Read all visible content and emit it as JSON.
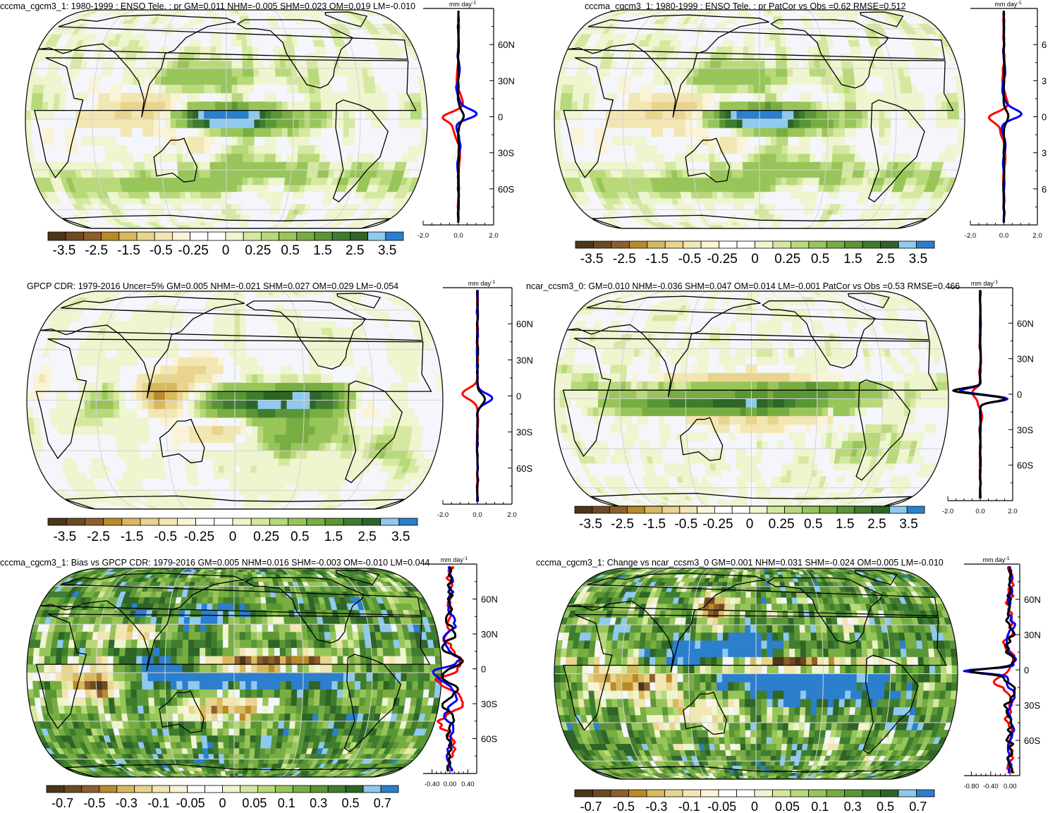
{
  "colors": {
    "scale": [
      "#4c3618",
      "#6e4a22",
      "#8c5f2c",
      "#b88a2a",
      "#d8b95f",
      "#e8d48e",
      "#f2e6b2",
      "#faf3d6",
      "#ffffff",
      "#ffffff",
      "#eef5cf",
      "#d5e8a0",
      "#b8d97a",
      "#98c55a",
      "#78ad42",
      "#5a9636",
      "#3f7d2e",
      "#2e6526",
      "#8fc9ee",
      "#2b7fcc"
    ],
    "ocean": "#f5f6fb",
    "land": "#ffffff",
    "grid": "#d4d4d4",
    "coast": "#000000",
    "obs_line": "#ff0000",
    "model_line": "#0000ff",
    "diff_line": "#000000"
  },
  "chart_data": [
    {
      "type": "heatmap",
      "title": "cccma_cgcm3_1: 1980-1999 : ENSO Tele. : pr GM=0.011 NHM=-0.005 SHM=0.023 OM=0.019 LM=-0.010",
      "field": "model",
      "colorbar": {
        "labels": [
          "-3.5",
          "-2.5",
          "-1.5",
          "-0.5",
          "-0.25",
          "0",
          "0.25",
          "0.5",
          "1.5",
          "2.5",
          "3.5"
        ]
      },
      "zonal": {
        "unit": "mm day",
        "unit_exp": "-1",
        "xticks": [
          "-2.0",
          "0.0",
          "2.0"
        ],
        "xlim": [
          -2,
          2
        ],
        "lat_ticks": [
          "60N",
          "30N",
          "0",
          "30S",
          "60S"
        ],
        "ylim": [
          -90,
          90
        ]
      }
    },
    {
      "type": "heatmap",
      "title": "cccma_cgcm3_1: 1980-1999 : ENSO Tele. : pr PatCor vs Obs =0.62 RMSE=0.512",
      "field": "model",
      "colorbar": {
        "labels": [
          "-3.5",
          "-2.5",
          "-1.5",
          "-0.5",
          "-0.25",
          "0",
          "0.25",
          "0.5",
          "1.5",
          "2.5",
          "3.5"
        ]
      },
      "zonal": {
        "unit": "mm day",
        "unit_exp": "-1",
        "xticks": [
          "-2.0",
          "0.0",
          "2.0"
        ],
        "xlim": [
          -2,
          2
        ],
        "lat_ticks": [
          "6",
          "3",
          "0",
          "3",
          "6"
        ],
        "ylim": [
          -90,
          90
        ]
      }
    },
    {
      "type": "heatmap",
      "title": "GPCP CDR: 1979-2016 Uncer=5% GM=0.005 NHM=-0.021 SHM=0.027 OM=0.029 LM=-0.054",
      "field": "obs",
      "colorbar": {
        "labels": [
          "-3.5",
          "-2.5",
          "-1.5",
          "-0.5",
          "-0.25",
          "0",
          "0.25",
          "0.5",
          "1.5",
          "2.5",
          "3.5"
        ]
      },
      "zonal": {
        "unit": "mm day",
        "unit_exp": "-1",
        "xticks": [
          "-2.0",
          "0.0",
          "2.0"
        ],
        "xlim": [
          -2,
          2
        ],
        "lat_ticks": [
          "60N",
          "30N",
          "0",
          "30S",
          "60S"
        ],
        "ylim": [
          -90,
          90
        ]
      }
    },
    {
      "type": "heatmap",
      "title": "ncar_ccsm3_0: GM=0.010 NHM=-0.036 SHM=0.047 OM=0.014 LM=-0.001 PatCor vs Obs =0.53 RMSE=0.466",
      "field": "model2",
      "colorbar": {
        "labels": [
          "-3.5",
          "-2.5",
          "-1.5",
          "-0.5",
          "-0.25",
          "0",
          "0.25",
          "0.5",
          "1.5",
          "2.5",
          "3.5"
        ]
      },
      "zonal": {
        "unit": "mm day",
        "unit_exp": "-1",
        "xticks": [
          "-2.0",
          "0.0",
          "2.0"
        ],
        "xlim": [
          -2,
          2
        ],
        "lat_ticks": [
          "60N",
          "30N",
          "0",
          "30S",
          "60S"
        ],
        "ylim": [
          -90,
          90
        ]
      }
    },
    {
      "type": "heatmap",
      "title": "cccma_cgcm3_1: Bias vs GPCP CDR: 1979-2016 GM=0.005 NHM=0.016 SHM=-0.003 OM=-0.010 LM=0.044",
      "field": "bias",
      "colorbar": {
        "labels": [
          "-0.7",
          "-0.5",
          "-0.3",
          "-0.1",
          "-0.05",
          "0",
          "0.05",
          "0.1",
          "0.3",
          "0.5",
          "0.7"
        ]
      },
      "zonal": {
        "unit": "mm day",
        "unit_exp": "-1",
        "xticks": [
          "-0.40",
          "0.00",
          "0.40"
        ],
        "xlim": [
          -0.6,
          0.6
        ],
        "lat_ticks": [
          "60N",
          "30N",
          "0",
          "30S",
          "60S"
        ],
        "ylim": [
          -90,
          90
        ]
      }
    },
    {
      "type": "heatmap",
      "title": "cccma_cgcm3_1: Change vs ncar_ccsm3_0 GM=0.001 NHM=0.031 SHM=-0.024 OM=0.005 LM=-0.010",
      "field": "change",
      "colorbar": {
        "labels": [
          "-0.7",
          "-0.5",
          "-0.3",
          "-0.1",
          "-0.05",
          "0",
          "0.05",
          "0.1",
          "0.3",
          "0.5",
          "0.7"
        ]
      },
      "zonal": {
        "unit": "mm day",
        "unit_exp": "-1",
        "xticks": [
          "-0.80",
          "-0.40",
          "0.00"
        ],
        "xlim": [
          -0.95,
          0.2
        ],
        "lat_ticks": [
          "60N",
          "30N",
          "0",
          "30S",
          "60S"
        ],
        "ylim": [
          -90,
          90
        ]
      }
    }
  ]
}
